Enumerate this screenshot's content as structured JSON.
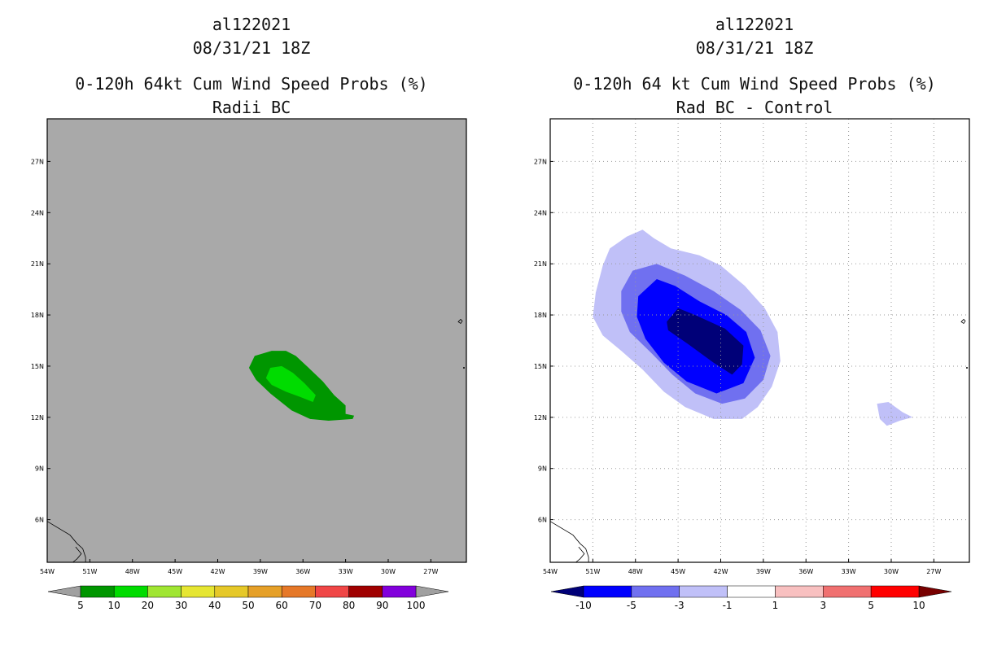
{
  "chart_data": [
    {
      "type": "heatmap",
      "storm_id": "al122021",
      "date": "08/31/21 18Z",
      "title": "0-120h 64kt Cum Wind Speed Probs (%)",
      "subtitle": "Radii BC",
      "x_ticks": [
        "54W",
        "51W",
        "48W",
        "45W",
        "42W",
        "39W",
        "36W",
        "33W",
        "30W",
        "27W"
      ],
      "y_ticks": [
        "6N",
        "9N",
        "12N",
        "15N",
        "18N",
        "21N",
        "24N",
        "27N"
      ],
      "colorbar": {
        "labels": [
          "5",
          "10",
          "20",
          "30",
          "40",
          "50",
          "60",
          "70",
          "80",
          "90",
          "100"
        ],
        "colors": [
          "#009600",
          "#00dc00",
          "#a0e632",
          "#e6e632",
          "#e6c828",
          "#e6a028",
          "#e67828",
          "#f04646",
          "#a00000",
          "#8200dc"
        ],
        "extend_colors": [
          "#a0a0a0",
          "#a0a0a0"
        ]
      },
      "grid": false,
      "background": "#a9a9a9",
      "contours": [
        {
          "level": "5-10",
          "color": "#009600",
          "points": [
            [
              -39.8,
              14.9
            ],
            [
              -39.4,
              15.6
            ],
            [
              -38.2,
              15.9
            ],
            [
              -37.2,
              15.9
            ],
            [
              -36.5,
              15.6
            ],
            [
              -35.6,
              14.9
            ],
            [
              -34.6,
              14.1
            ],
            [
              -33.8,
              13.3
            ],
            [
              -33.0,
              12.7
            ],
            [
              -33.0,
              12.2
            ],
            [
              -32.4,
              12.1
            ],
            [
              -32.5,
              11.9
            ],
            [
              -34.2,
              11.8
            ],
            [
              -35.5,
              11.9
            ],
            [
              -36.8,
              12.4
            ],
            [
              -38.3,
              13.4
            ],
            [
              -39.3,
              14.2
            ]
          ]
        },
        {
          "level": "10-20",
          "color": "#00dc00",
          "points": [
            [
              -38.6,
              14.3
            ],
            [
              -38.3,
              14.9
            ],
            [
              -37.5,
              15.0
            ],
            [
              -36.7,
              14.6
            ],
            [
              -35.9,
              14.0
            ],
            [
              -35.1,
              13.3
            ],
            [
              -35.3,
              12.9
            ],
            [
              -36.2,
              13.2
            ],
            [
              -37.2,
              13.5
            ],
            [
              -38.2,
              13.9
            ]
          ]
        }
      ]
    },
    {
      "type": "heatmap",
      "storm_id": "al122021",
      "date": "08/31/21 18Z",
      "title": "0-120h 64 kt Cum Wind Speed Probs (%)",
      "subtitle": "Rad BC - Control",
      "x_ticks": [
        "54W",
        "51W",
        "48W",
        "45W",
        "42W",
        "39W",
        "36W",
        "33W",
        "30W",
        "27W"
      ],
      "y_ticks": [
        "6N",
        "9N",
        "12N",
        "15N",
        "18N",
        "21N",
        "24N",
        "27N"
      ],
      "colorbar": {
        "labels": [
          "-10",
          "-5",
          "-3",
          "-1",
          "1",
          "3",
          "5",
          "10"
        ],
        "colors": [
          "#0000ff",
          "#7070f0",
          "#c0c0f8",
          "#ffffff",
          "#f8c0c0",
          "#f07070",
          "#ff0000"
        ],
        "extend_colors": [
          "#000078",
          "#780000"
        ]
      },
      "grid": true,
      "background": "#ffffff",
      "contours": [
        {
          "level": "-3 to -1",
          "color": "#c0c0f8",
          "points": [
            [
              -51.0,
              17.9
            ],
            [
              -50.8,
              19.3
            ],
            [
              -50.3,
              20.9
            ],
            [
              -49.8,
              21.9
            ],
            [
              -48.6,
              22.6
            ],
            [
              -47.5,
              23.0
            ],
            [
              -46.7,
              22.5
            ],
            [
              -45.5,
              21.9
            ],
            [
              -43.5,
              21.5
            ],
            [
              -42.0,
              20.9
            ],
            [
              -40.3,
              19.7
            ],
            [
              -38.9,
              18.4
            ],
            [
              -38.0,
              17.0
            ],
            [
              -37.8,
              15.3
            ],
            [
              -38.4,
              13.8
            ],
            [
              -39.4,
              12.6
            ],
            [
              -40.5,
              11.9
            ],
            [
              -42.5,
              11.9
            ],
            [
              -44.5,
              12.6
            ],
            [
              -46.0,
              13.5
            ],
            [
              -47.5,
              14.8
            ],
            [
              -49.0,
              15.9
            ],
            [
              -50.3,
              16.8
            ]
          ]
        },
        {
          "level": "-3 to -1",
          "color": "#c0c0f8",
          "points": [
            [
              -31.0,
              12.8
            ],
            [
              -30.2,
              12.9
            ],
            [
              -29.2,
              12.3
            ],
            [
              -28.5,
              12.0
            ],
            [
              -29.4,
              11.8
            ],
            [
              -30.3,
              11.5
            ],
            [
              -30.8,
              11.9
            ]
          ]
        },
        {
          "level": "-5 to -3",
          "color": "#7070f0",
          "points": [
            [
              -49.0,
              19.4
            ],
            [
              -48.2,
              20.6
            ],
            [
              -46.5,
              21.0
            ],
            [
              -44.5,
              20.3
            ],
            [
              -42.5,
              19.4
            ],
            [
              -40.6,
              18.3
            ],
            [
              -39.2,
              17.1
            ],
            [
              -38.5,
              15.6
            ],
            [
              -39.0,
              14.2
            ],
            [
              -40.3,
              13.1
            ],
            [
              -41.9,
              12.8
            ],
            [
              -43.8,
              13.4
            ],
            [
              -45.4,
              14.5
            ],
            [
              -46.8,
              15.7
            ],
            [
              -48.4,
              17.0
            ],
            [
              -49.0,
              18.2
            ]
          ]
        },
        {
          "level": "-10 to -5",
          "color": "#0000ff",
          "points": [
            [
              -47.8,
              19.1
            ],
            [
              -46.5,
              20.1
            ],
            [
              -45.2,
              19.7
            ],
            [
              -43.5,
              18.8
            ],
            [
              -41.6,
              18.0
            ],
            [
              -40.2,
              17.0
            ],
            [
              -39.6,
              15.5
            ],
            [
              -40.4,
              14.0
            ],
            [
              -42.3,
              13.4
            ],
            [
              -44.4,
              14.1
            ],
            [
              -46.0,
              15.2
            ],
            [
              -47.3,
              16.6
            ],
            [
              -47.9,
              17.9
            ]
          ]
        },
        {
          "level": "< -10",
          "color": "#000078",
          "points": [
            [
              -45.8,
              17.6
            ],
            [
              -45.0,
              18.4
            ],
            [
              -43.8,
              18.0
            ],
            [
              -41.7,
              17.2
            ],
            [
              -40.4,
              16.2
            ],
            [
              -40.5,
              15.1
            ],
            [
              -41.2,
              14.5
            ],
            [
              -42.5,
              15.2
            ],
            [
              -44.3,
              16.3
            ],
            [
              -45.7,
              17.1
            ]
          ]
        }
      ]
    }
  ]
}
